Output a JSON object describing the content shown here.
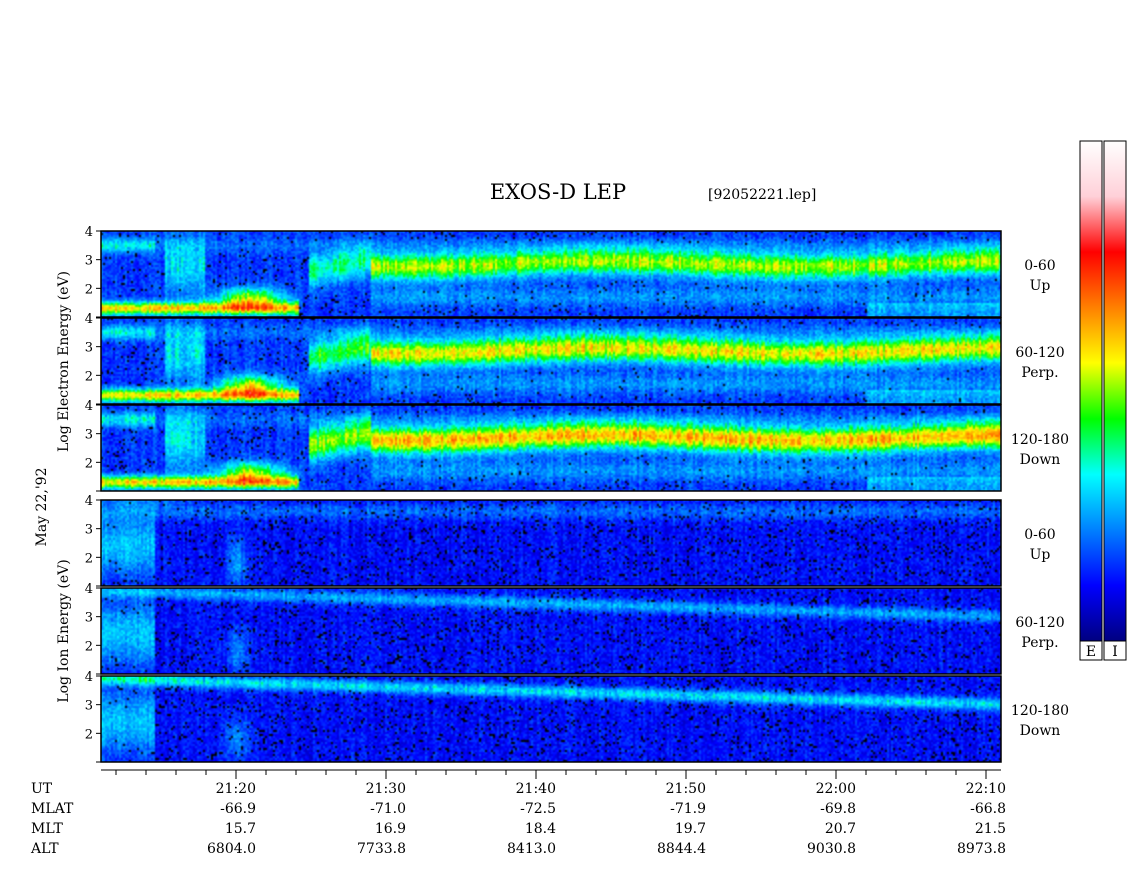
{
  "chart_data": {
    "type": "heatmap",
    "title": "EXOS-D LEP",
    "file_name": "[92052221.lep]",
    "date_label": "May 22,'92",
    "groups": [
      {
        "name": "electron",
        "ylabel_lines": [
          "Log",
          "Electron",
          "Energy",
          "(eV)"
        ]
      },
      {
        "name": "ion",
        "ylabel_lines": [
          "Log",
          "Ion",
          "Energy",
          "(eV)"
        ]
      }
    ],
    "panels": [
      {
        "group": "electron",
        "pitch_range": "0-60",
        "direction": "Up"
      },
      {
        "group": "electron",
        "pitch_range": "60-120",
        "direction": "Perp."
      },
      {
        "group": "electron",
        "pitch_range": "120-180",
        "direction": "Down"
      },
      {
        "group": "ion",
        "pitch_range": "0-60",
        "direction": "Up"
      },
      {
        "group": "ion",
        "pitch_range": "60-120",
        "direction": "Perp."
      },
      {
        "group": "ion",
        "pitch_range": "120-180",
        "direction": "Down"
      }
    ],
    "y_ticks": [
      "4",
      "3",
      "2"
    ],
    "y_range_log_eV": [
      1,
      4
    ],
    "x_range_minutes": [
      "21:11",
      "22:11"
    ],
    "x_minor_tick_interval_min": 2,
    "x_major_ticks": [
      "21:20",
      "21:30",
      "21:40",
      "21:50",
      "22:00",
      "22:10"
    ],
    "orbit_rows": [
      {
        "label": "UT",
        "values": [
          "21:20",
          "21:30",
          "21:40",
          "21:50",
          "22:00",
          "22:10"
        ]
      },
      {
        "label": "MLAT",
        "values": [
          "-66.9",
          "-71.0",
          "-72.5",
          "-71.9",
          "-69.8",
          "-66.8"
        ]
      },
      {
        "label": "MLT",
        "values": [
          "15.7",
          "16.9",
          "18.4",
          "19.7",
          "20.7",
          "21.5"
        ]
      },
      {
        "label": "ALT",
        "values": [
          "6804.0",
          "7733.8",
          "8413.0",
          "8844.4",
          "9030.8",
          "8973.8"
        ]
      }
    ],
    "colorbars": [
      {
        "name": "electron",
        "label": "E"
      },
      {
        "name": "ion",
        "label": "I"
      }
    ],
    "colorscale": [
      "#000080",
      "#0000ff",
      "#0080ff",
      "#00ffff",
      "#00ff00",
      "#ffff00",
      "#ff8000",
      "#ff0000",
      "#ffd0d8",
      "#ffffff"
    ]
  }
}
